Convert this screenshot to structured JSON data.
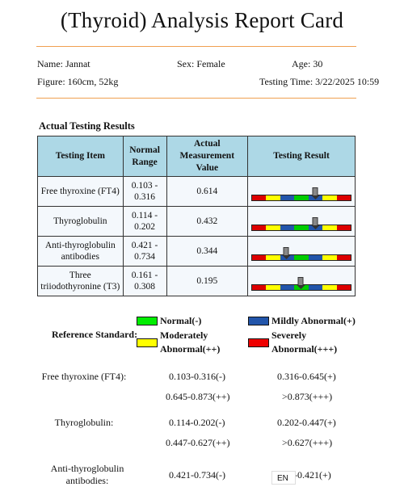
{
  "title": "(Thyroid) Analysis Report Card",
  "patient": {
    "name": "Name: Jannat",
    "sex": "Sex: Female",
    "age": "Age: 30",
    "figure": "Figure: 160cm, 52kg",
    "testing_time": "Testing Time: 3/22/2025 10:59"
  },
  "section_title": "Actual Testing Results",
  "table": {
    "headers": [
      "Testing Item",
      "Normal Range",
      "Actual Measurement Value",
      "Testing Result"
    ],
    "rows": [
      {
        "item": "Free thyroxine (FT4)",
        "range": "0.103 - 0.316",
        "value": "0.614",
        "indicator": 0.64
      },
      {
        "item": "Thyroglobulin",
        "range": "0.114 - 0.202",
        "value": "0.432",
        "indicator": 0.64
      },
      {
        "item": "Anti-thyroglobulin antibodies",
        "range": "0.421 - 0.734",
        "value": "0.344",
        "indicator": 0.35
      },
      {
        "item": "Three triiodothyronine (T3)",
        "range": "0.161 - 0.308",
        "value": "0.195",
        "indicator": 0.49
      }
    ]
  },
  "bar_segment_colors": [
    "#dd0000",
    "#ffff00",
    "#2255aa",
    "#00cc00",
    "#2255aa",
    "#ffff00",
    "#dd0000"
  ],
  "reference": {
    "label": "Reference Standard:",
    "legend": [
      {
        "label": "Normal(-)",
        "color": "#00ee00"
      },
      {
        "label": "Mildly Abnormal(+)",
        "color": "#2255aa"
      },
      {
        "label": "Moderately Abnormal(++)",
        "color": "#ffff00"
      },
      {
        "label": "Severely Abnormal(+++)",
        "color": "#ee0000"
      }
    ],
    "standards": [
      {
        "name": "Free thyroxine (FT4):",
        "normal": "0.103-0.316(-)",
        "mild": "0.316-0.645(+)",
        "moderate": "0.645-0.873(++)",
        "severe": ">0.873(+++)"
      },
      {
        "name": "Thyroglobulin:",
        "normal": "0.114-0.202(-)",
        "mild": "0.202-0.447(+)",
        "moderate": "0.447-0.627(++)",
        "severe": ">0.627(+++)"
      },
      {
        "name": "Anti-thyroglobulin antibodies:",
        "normal": "0.421-0.734(-)",
        "mild": "0-0.421(+)"
      }
    ]
  },
  "lang_chip": "EN"
}
